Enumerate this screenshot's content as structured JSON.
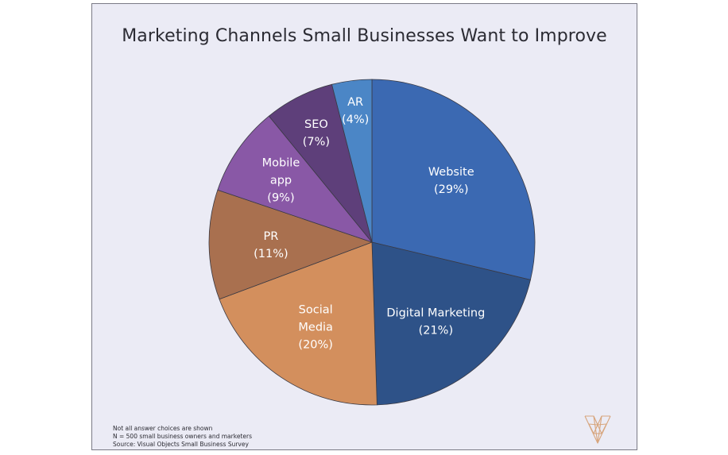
{
  "chart_data": {
    "type": "pie",
    "title": "Marketing Channels Small Businesses Want to Improve",
    "slices": [
      {
        "label": [
          "Website"
        ],
        "pct": "(29%)",
        "value": 29,
        "color": "#3b69b2"
      },
      {
        "label": [
          "Digital Marketing"
        ],
        "pct": "(21%)",
        "value": 21,
        "color": "#2e5288"
      },
      {
        "label": [
          "Social",
          "Media"
        ],
        "pct": "(20%)",
        "value": 20,
        "color": "#d38f5d"
      },
      {
        "label": [
          "PR"
        ],
        "pct": "(11%)",
        "value": 11,
        "color": "#a9704f"
      },
      {
        "label": [
          "Mobile",
          "app"
        ],
        "pct": "(9%)",
        "value": 9,
        "color": "#8958a6"
      },
      {
        "label": [
          "SEO"
        ],
        "pct": "(7%)",
        "value": 7,
        "color": "#5e3f7a"
      },
      {
        "label": [
          "AR"
        ],
        "pct": "(4%)",
        "value": 4,
        "color": "#4b86c6"
      }
    ],
    "start_angle_deg": 0,
    "direction": "clockwise",
    "label_color": "#ffffff"
  },
  "notes": {
    "line1": "Not all answer choices are shown",
    "line2": "N = 500 small business owners and marketers",
    "line3": "Source: Visual Objects Small Business Survey"
  },
  "colors": {
    "background": "#ebebf5",
    "border": "#7a7a86",
    "logo": "#d7a57d"
  },
  "logo_icon": "visual-objects-v-logo"
}
